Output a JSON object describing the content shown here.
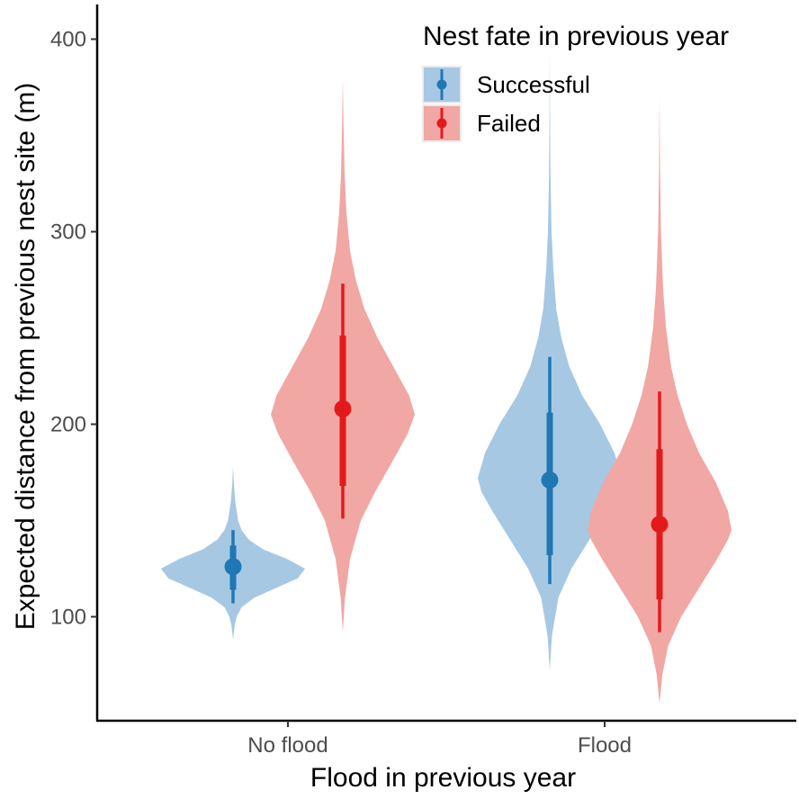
{
  "chart_data": {
    "type": "violin",
    "xlabel": "Flood in previous year",
    "ylabel": "Expected distance from previous nest site (m)",
    "categories": [
      "No flood",
      "Flood"
    ],
    "ylim": [
      40,
      420
    ],
    "yticks": [
      100,
      200,
      300,
      400
    ],
    "grid": false,
    "legend": {
      "title": "Nest fate in previous year",
      "placement": "top-right",
      "entries": [
        "Successful",
        "Failed"
      ]
    },
    "series": [
      {
        "name": "Successful",
        "color": "#1f78b4",
        "fill": "#a6c8e3",
        "groups": [
          {
            "category": "No flood",
            "median": 126,
            "inner_interval": [
              114,
              137
            ],
            "outer_interval": [
              107,
              145
            ],
            "extent": [
              88,
              178
            ],
            "density": [
              [
                88,
                0
              ],
              [
                95,
                0.02
              ],
              [
                100,
                0.05
              ],
              [
                105,
                0.12
              ],
              [
                110,
                0.3
              ],
              [
                115,
                0.6
              ],
              [
                120,
                0.9
              ],
              [
                125,
                1.0
              ],
              [
                130,
                0.75
              ],
              [
                135,
                0.42
              ],
              [
                140,
                0.22
              ],
              [
                145,
                0.12
              ],
              [
                150,
                0.07
              ],
              [
                160,
                0.03
              ],
              [
                170,
                0.01
              ],
              [
                178,
                0
              ]
            ]
          },
          {
            "category": "Flood",
            "median": 171,
            "inner_interval": [
              132,
              206
            ],
            "outer_interval": [
              117,
              235
            ],
            "extent": [
              72,
              395
            ],
            "density": [
              [
                72,
                0
              ],
              [
                90,
                0.03
              ],
              [
                110,
                0.12
              ],
              [
                125,
                0.3
              ],
              [
                140,
                0.55
              ],
              [
                155,
                0.8
              ],
              [
                165,
                0.95
              ],
              [
                172,
                1.0
              ],
              [
                185,
                0.9
              ],
              [
                200,
                0.7
              ],
              [
                215,
                0.45
              ],
              [
                230,
                0.27
              ],
              [
                245,
                0.16
              ],
              [
                260,
                0.09
              ],
              [
                280,
                0.05
              ],
              [
                300,
                0.025
              ],
              [
                330,
                0.01
              ],
              [
                360,
                0.004
              ],
              [
                395,
                0
              ]
            ]
          }
        ]
      },
      {
        "name": "Failed",
        "color": "#e31a1c",
        "fill": "#f1a7a3",
        "groups": [
          {
            "category": "No flood",
            "median": 208,
            "inner_interval": [
              168,
              246
            ],
            "outer_interval": [
              151,
              273
            ],
            "extent": [
              92,
              380
            ],
            "density": [
              [
                92,
                0
              ],
              [
                110,
                0.03
              ],
              [
                130,
                0.1
              ],
              [
                150,
                0.25
              ],
              [
                165,
                0.45
              ],
              [
                180,
                0.68
              ],
              [
                195,
                0.9
              ],
              [
                205,
                1.0
              ],
              [
                215,
                0.92
              ],
              [
                230,
                0.7
              ],
              [
                245,
                0.48
              ],
              [
                260,
                0.3
              ],
              [
                275,
                0.18
              ],
              [
                290,
                0.1
              ],
              [
                310,
                0.05
              ],
              [
                330,
                0.025
              ],
              [
                355,
                0.01
              ],
              [
                380,
                0
              ]
            ]
          },
          {
            "category": "Flood",
            "median": 148,
            "inner_interval": [
              109,
              187
            ],
            "outer_interval": [
              92,
              217
            ],
            "extent": [
              55,
              370
            ],
            "density": [
              [
                55,
                0
              ],
              [
                70,
                0.04
              ],
              [
                85,
                0.12
              ],
              [
                100,
                0.3
              ],
              [
                115,
                0.55
              ],
              [
                130,
                0.8
              ],
              [
                140,
                0.95
              ],
              [
                145,
                1.0
              ],
              [
                155,
                0.95
              ],
              [
                170,
                0.78
              ],
              [
                185,
                0.55
              ],
              [
                200,
                0.38
              ],
              [
                215,
                0.25
              ],
              [
                230,
                0.16
              ],
              [
                250,
                0.09
              ],
              [
                270,
                0.05
              ],
              [
                300,
                0.02
              ],
              [
                330,
                0.008
              ],
              [
                370,
                0
              ]
            ]
          }
        ]
      }
    ]
  }
}
